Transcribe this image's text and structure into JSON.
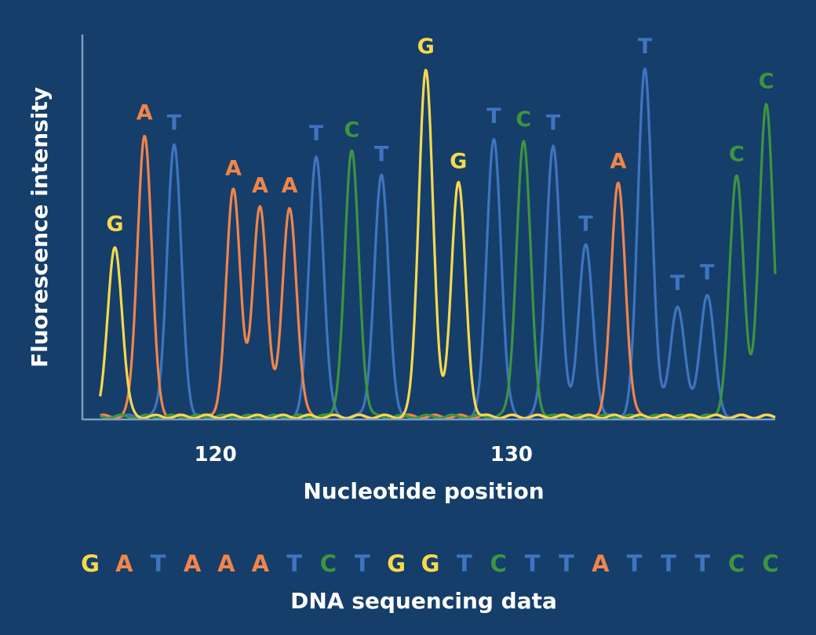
{
  "colors": {
    "background": "#153e6a",
    "A": "#f0854a",
    "T": "#3f74c0",
    "C": "#3e9440",
    "G": "#f5d94e",
    "axis": "#7f9fc0",
    "text": "#ffffff"
  },
  "chart_data": {
    "type": "line",
    "title": "",
    "xlabel": "Nucleotide position",
    "ylabel": "Fluorescence intensity",
    "x_ticks": [
      120,
      130
    ],
    "xlim": [
      115.4,
      138.8
    ],
    "ylim": [
      0,
      100
    ],
    "grid": false,
    "peaks": [
      {
        "base": "G",
        "label": "G",
        "position": 116.5,
        "height": 49
      },
      {
        "base": "A",
        "label": "A",
        "position": 117.5,
        "height": 81
      },
      {
        "base": "T",
        "label": "T",
        "position": 118.5,
        "height": 78
      },
      {
        "base": "A",
        "label": "A",
        "position": 120.5,
        "height": 65
      },
      {
        "base": "A",
        "label": "A",
        "position": 121.4,
        "height": 60
      },
      {
        "base": "A",
        "label": "A",
        "position": 122.4,
        "height": 60
      },
      {
        "base": "T",
        "label": "T",
        "position": 123.3,
        "height": 75
      },
      {
        "base": "C",
        "label": "C",
        "position": 124.5,
        "height": 76
      },
      {
        "base": "T",
        "label": "T",
        "position": 125.5,
        "height": 69
      },
      {
        "base": "G",
        "label": "G",
        "position": 127.0,
        "height": 100
      },
      {
        "base": "G",
        "label": "G",
        "position": 128.1,
        "height": 67
      },
      {
        "base": "T",
        "label": "T",
        "position": 129.3,
        "height": 80
      },
      {
        "base": "C",
        "label": "C",
        "position": 130.3,
        "height": 79
      },
      {
        "base": "T",
        "label": "T",
        "position": 131.3,
        "height": 78
      },
      {
        "base": "T",
        "label": "T",
        "position": 132.4,
        "height": 49
      },
      {
        "base": "A",
        "label": "A",
        "position": 133.5,
        "height": 67
      },
      {
        "base": "T",
        "label": "T",
        "position": 134.4,
        "height": 100
      },
      {
        "base": "T",
        "label": "T",
        "position": 135.5,
        "height": 32
      },
      {
        "base": "T",
        "label": "T",
        "position": 136.5,
        "height": 35
      },
      {
        "base": "C",
        "label": "C",
        "position": 137.5,
        "height": 69
      },
      {
        "base": "C",
        "label": "C",
        "position": 138.5,
        "height": 90
      }
    ]
  },
  "sequence": {
    "letters": [
      "G",
      "A",
      "T",
      "A",
      "A",
      "A",
      "T",
      "C",
      "T",
      "G",
      "G",
      "T",
      "C",
      "T",
      "T",
      "A",
      "T",
      "T",
      "T",
      "C",
      "C"
    ],
    "caption": "DNA sequencing data"
  }
}
